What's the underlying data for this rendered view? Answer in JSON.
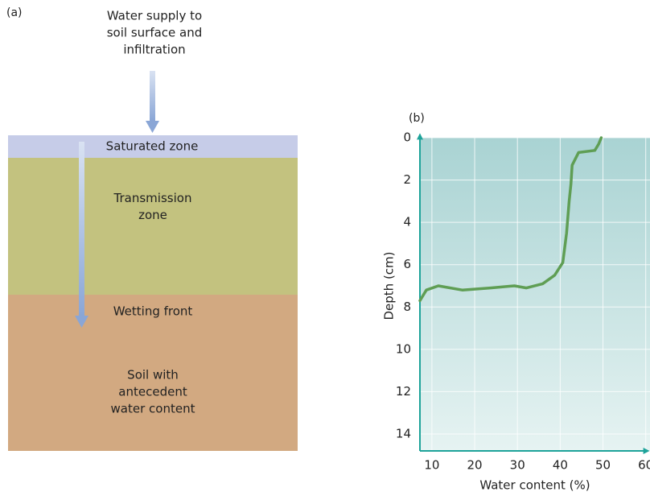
{
  "panel_a": {
    "label": "(a)",
    "supply": [
      "Water supply to",
      "soil surface and",
      "infiltration"
    ],
    "saturated": [
      "Saturated zone"
    ],
    "transmission": [
      "Transmission",
      "zone"
    ],
    "wetting_front": [
      "Wetting front"
    ],
    "antecedent": [
      "Soil with",
      "antecedent",
      "water content"
    ]
  },
  "chart_data": {
    "type": "line",
    "label": "(b)",
    "x_label": "Water content (%)",
    "y_label": "Depth (cm)",
    "x": [
      7.2,
      8.7,
      11.5,
      17.1,
      23.7,
      29.3,
      32.1,
      35.9,
      38.7,
      40.6,
      41.5,
      42.1,
      42.5,
      42.8,
      44.3,
      48.1,
      49.0,
      49.6
    ],
    "values": [
      7.7,
      7.2,
      7.0,
      7.2,
      7.1,
      7.0,
      7.1,
      6.9,
      6.5,
      5.9,
      4.5,
      3.0,
      2.2,
      1.3,
      0.7,
      0.6,
      0.3,
      0
    ],
    "color": "#5f9e54",
    "xlim": [
      7.2,
      61
    ],
    "xticks": [
      10,
      20,
      30,
      40,
      50,
      60
    ],
    "ylim": [
      0,
      14.8
    ],
    "yticks": [
      0,
      2,
      4,
      6,
      8,
      10,
      12,
      14
    ],
    "y_inverted": true,
    "grid": true
  }
}
